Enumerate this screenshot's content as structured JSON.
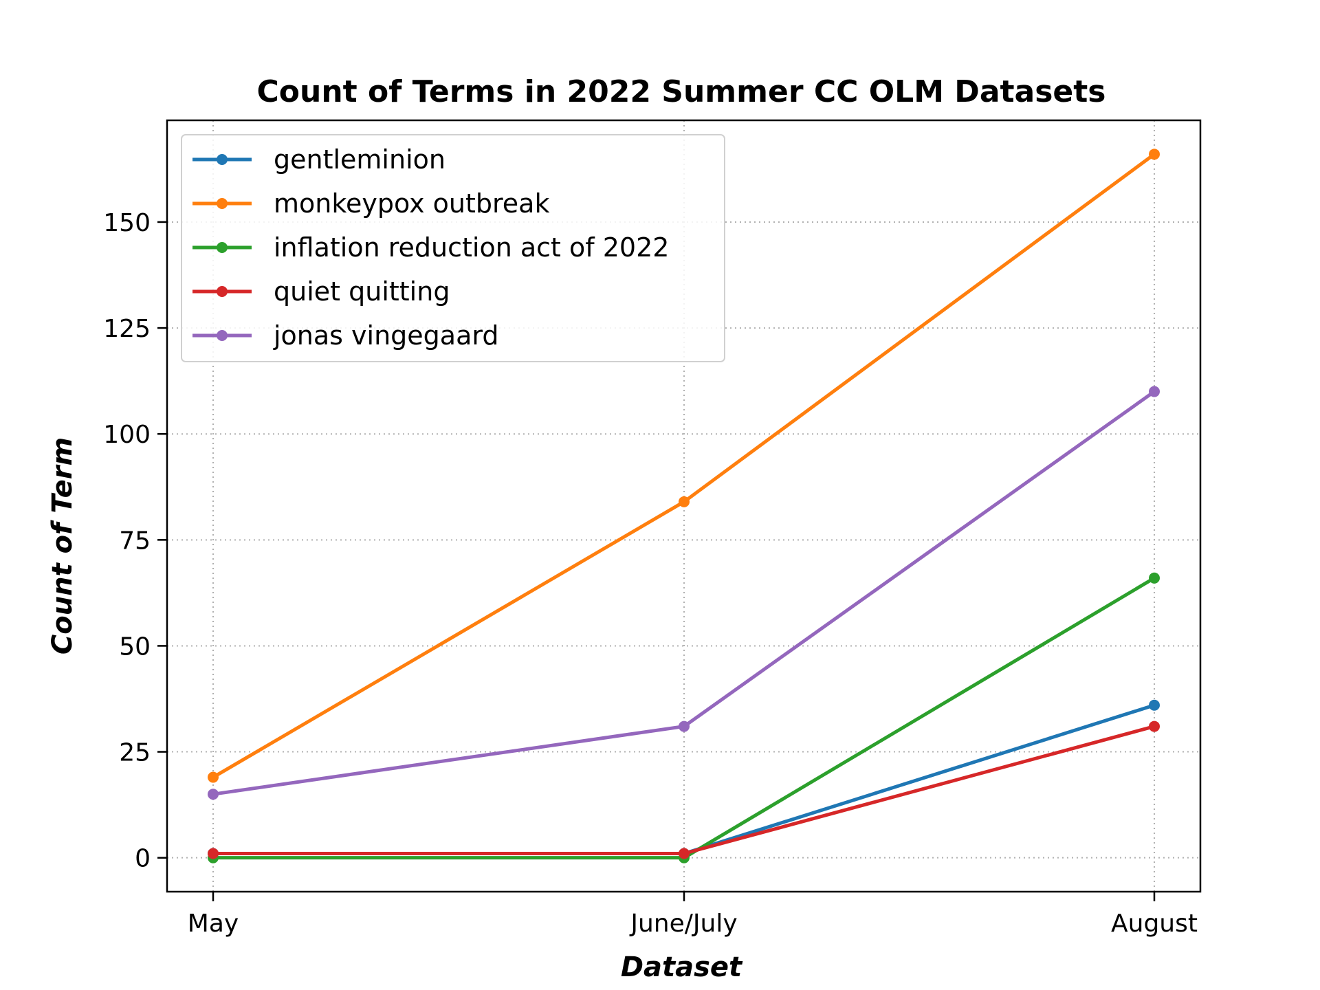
{
  "chart_data": {
    "type": "line",
    "title": "Count of Terms in 2022 Summer CC OLM Datasets",
    "xlabel": "Dataset",
    "ylabel": "Count of Term",
    "categories": [
      "May",
      "June/July",
      "August"
    ],
    "ylim": [
      -8,
      174
    ],
    "yticks": [
      0,
      25,
      50,
      75,
      100,
      125,
      150
    ],
    "grid": true,
    "legend_position": "top-left",
    "series": [
      {
        "name": "gentleminion",
        "color": "#1f77b4",
        "values": [
          1,
          1,
          36
        ]
      },
      {
        "name": "monkeypox outbreak",
        "color": "#ff7f0e",
        "values": [
          19,
          84,
          166
        ]
      },
      {
        "name": "inflation reduction act of 2022",
        "color": "#2ca02c",
        "values": [
          0,
          0,
          66
        ]
      },
      {
        "name": "quiet quitting",
        "color": "#d62728",
        "values": [
          1,
          1,
          31
        ]
      },
      {
        "name": "jonas vingegaard",
        "color": "#9467bd",
        "values": [
          15,
          31,
          110
        ]
      }
    ]
  }
}
